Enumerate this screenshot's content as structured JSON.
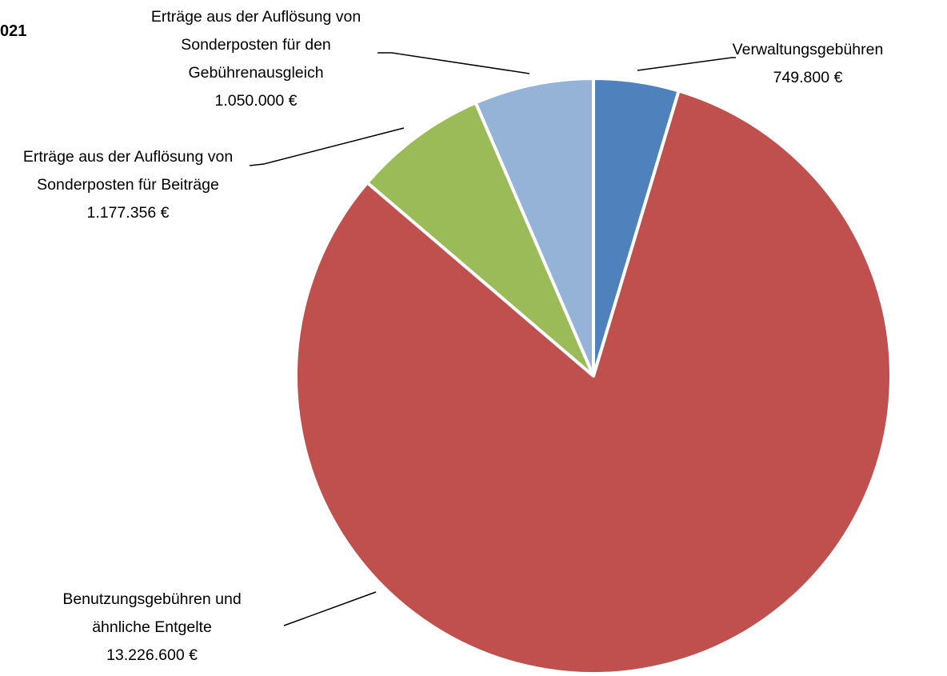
{
  "chart_data": {
    "type": "pie",
    "title": "021",
    "categories": [
      "Verwaltungsgebühren",
      "Benutzungsgebühren und ähnliche Entgelte",
      "Erträge aus der Auflösung von Sonderposten für Beiträge",
      "Erträge aus der Auflösung von Sonderposten für den Gebührenausgleich"
    ],
    "values": [
      749800,
      13226600,
      1177356,
      1050000
    ],
    "value_labels": [
      "749.800 €",
      "13.226.600 €",
      "1.177.356 €",
      "1.050.000 €"
    ],
    "colors": [
      "#4f81bd",
      "#c0504d",
      "#9bbb59",
      "#95b3d7"
    ]
  }
}
